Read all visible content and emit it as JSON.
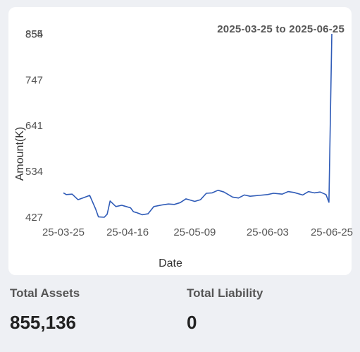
{
  "date_range": "2025-03-25 to 2025-06-25",
  "summary": {
    "assets_label": "Total Assets",
    "assets_value": "855,136",
    "liability_label": "Total Liability",
    "liability_value": "0"
  },
  "chart_data": {
    "type": "line",
    "xlabel": "Date",
    "ylabel": "Amount(K)",
    "y_ticks": [
      "427",
      "534",
      "641",
      "747",
      "854",
      "855"
    ],
    "x_ticks": [
      "25-03-25",
      "25-04-16",
      "25-05-09",
      "25-06-03",
      "25-06-25"
    ],
    "y_range": [
      427,
      855
    ],
    "x_range": [
      "2025-03-25",
      "2025-06-25"
    ],
    "line_color": "#2f5bb7",
    "series": [
      {
        "x": [
          "2025-03-25",
          "2025-03-26",
          "2025-03-28",
          "2025-03-30",
          "2025-04-01",
          "2025-04-03",
          "2025-04-05",
          "2025-04-06",
          "2025-04-08",
          "2025-04-09",
          "2025-04-10",
          "2025-04-12",
          "2025-04-14",
          "2025-04-15",
          "2025-04-17",
          "2025-04-18",
          "2025-04-19",
          "2025-04-21",
          "2025-04-23",
          "2025-04-25",
          "2025-04-28",
          "2025-04-30",
          "2025-05-02",
          "2025-05-04",
          "2025-05-06",
          "2025-05-09",
          "2025-05-11",
          "2025-05-13",
          "2025-05-15",
          "2025-05-17",
          "2025-05-19",
          "2025-05-22",
          "2025-05-24",
          "2025-05-26",
          "2025-05-28",
          "2025-05-31",
          "2025-06-03",
          "2025-06-05",
          "2025-06-08",
          "2025-06-10",
          "2025-06-12",
          "2025-06-15",
          "2025-06-17",
          "2025-06-19",
          "2025-06-21",
          "2025-06-23",
          "2025-06-24",
          "2025-06-25"
        ],
        "y": [
          484,
          480,
          481,
          468,
          473,
          478,
          447,
          428,
          427,
          434,
          465,
          452,
          455,
          453,
          449,
          440,
          438,
          433,
          435,
          452,
          456,
          458,
          457,
          461,
          470,
          464,
          468,
          483,
          484,
          490,
          486,
          474,
          472,
          479,
          476,
          478,
          480,
          483,
          481,
          487,
          485,
          479,
          487,
          484,
          486,
          480,
          462,
          855
        ]
      }
    ]
  }
}
